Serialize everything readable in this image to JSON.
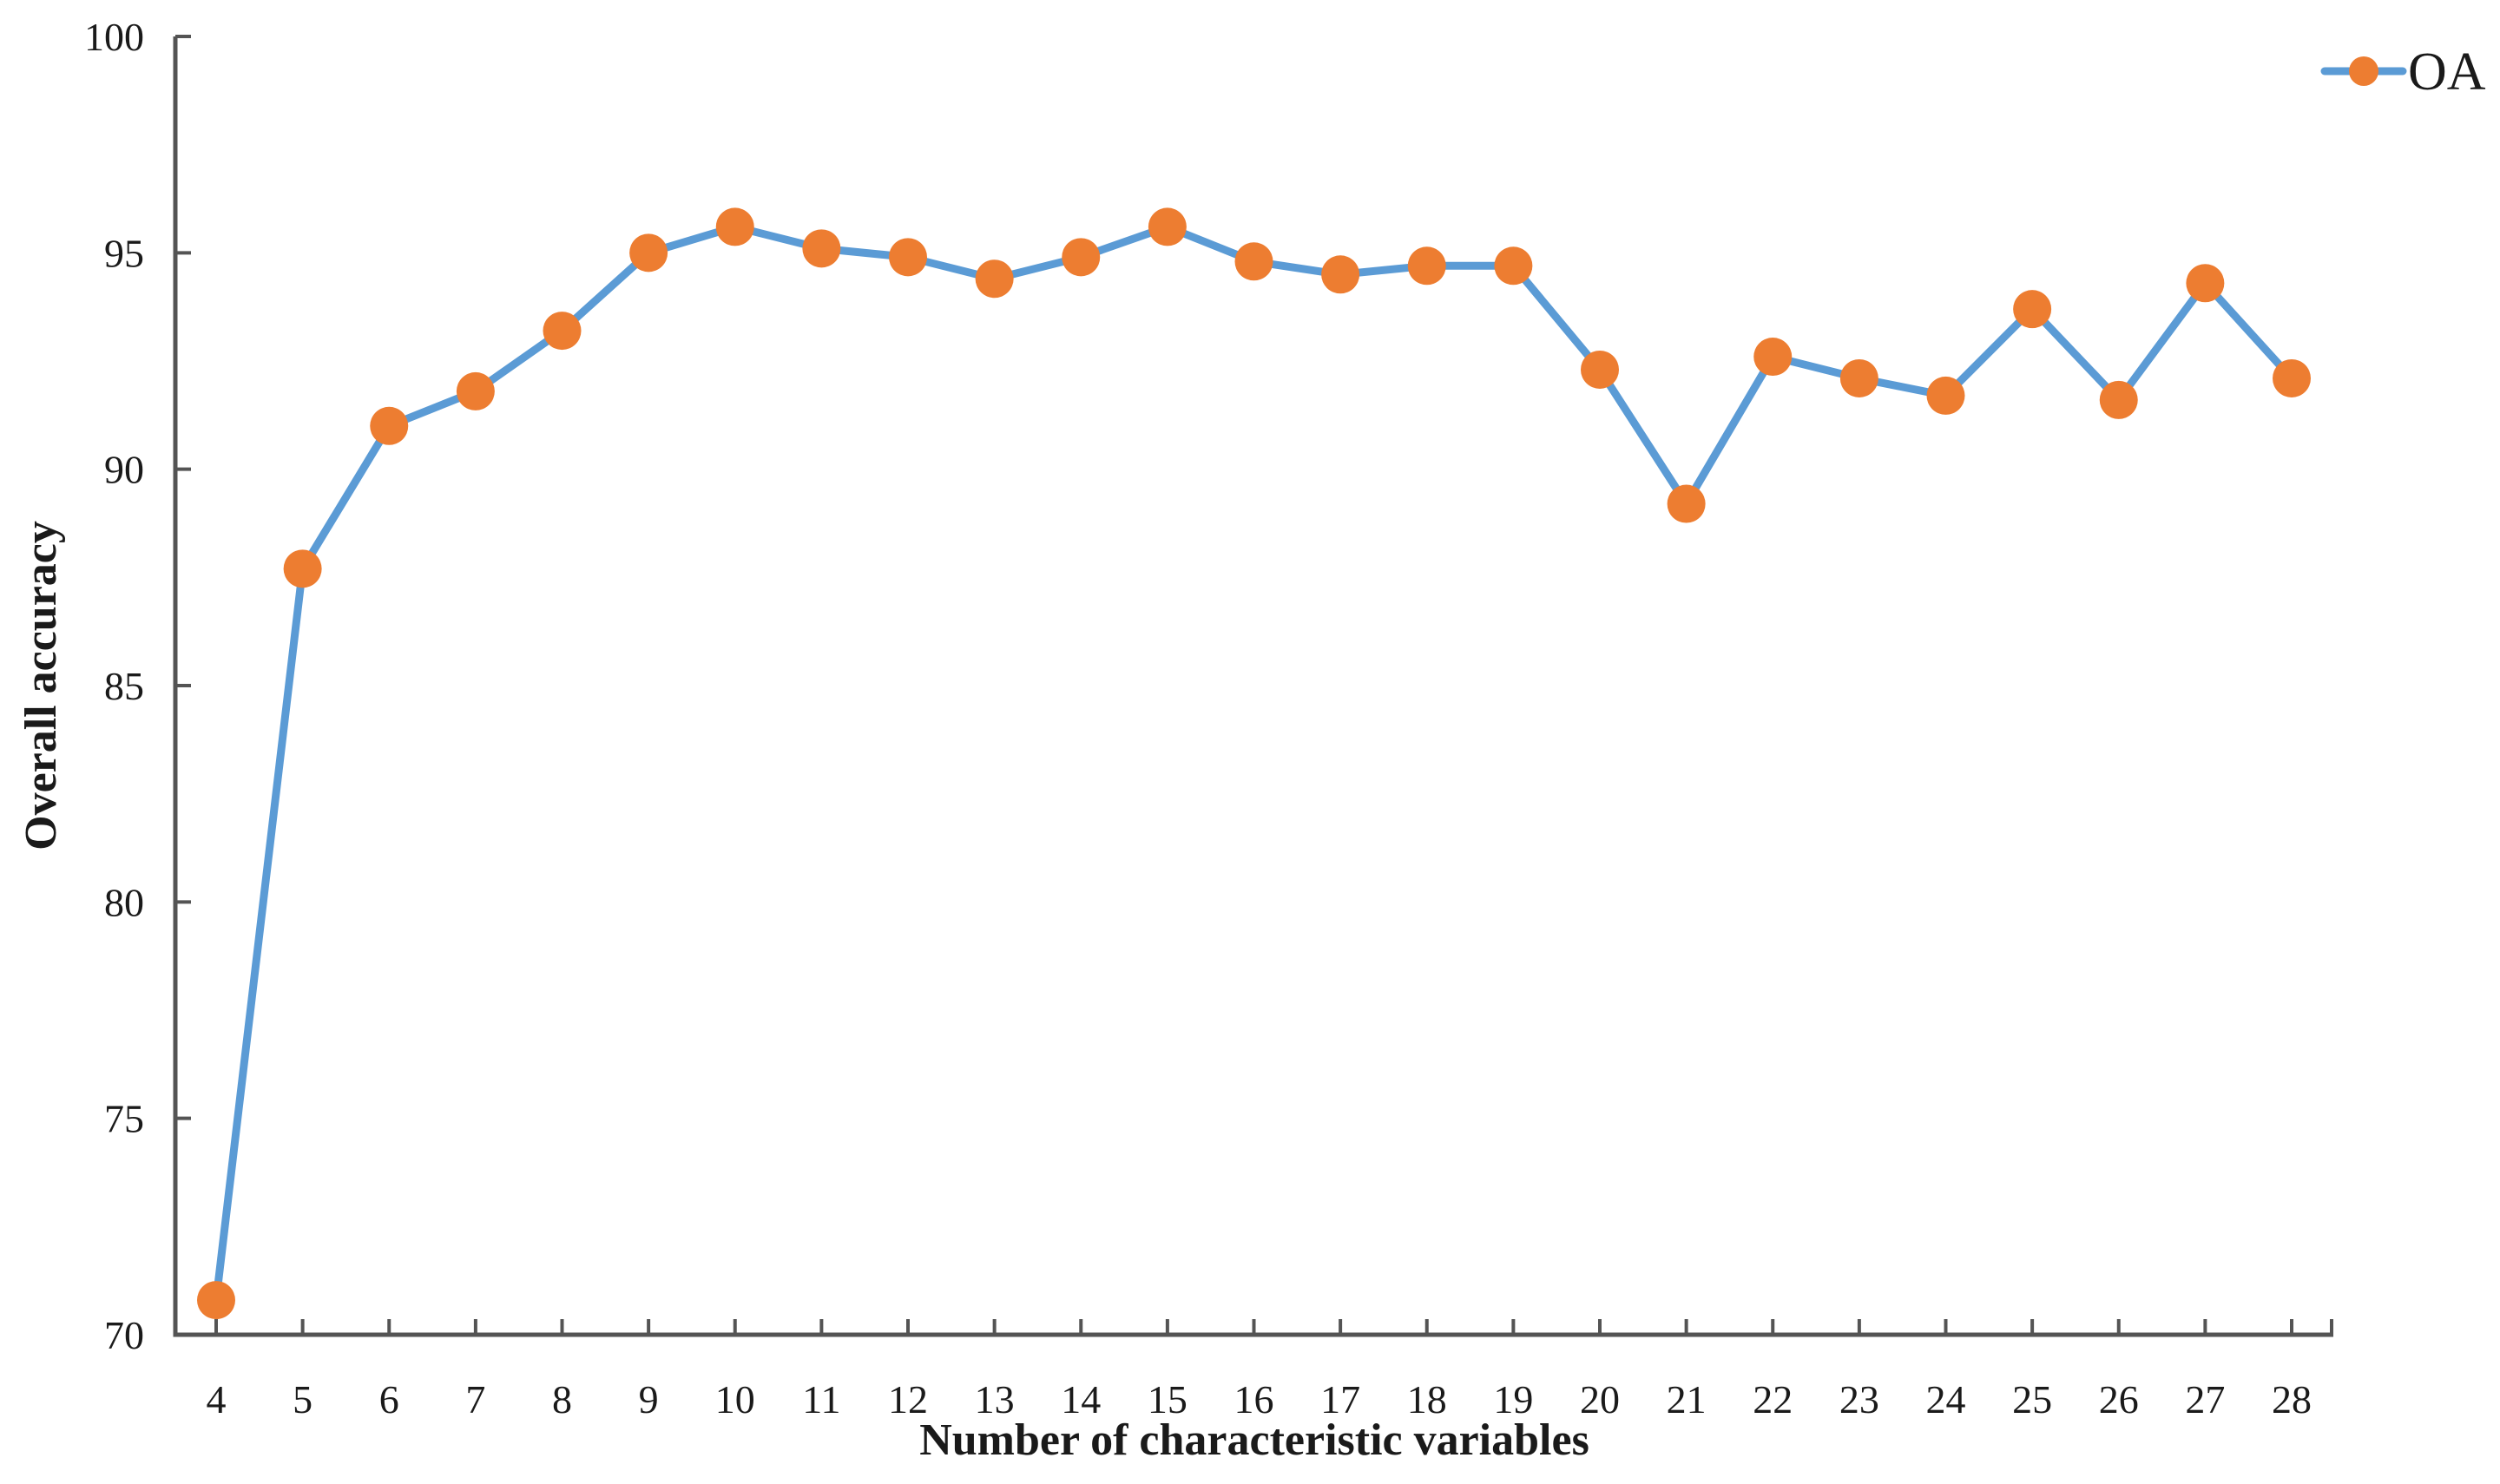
{
  "chart_data": {
    "type": "line",
    "title": "",
    "x": [
      4,
      5,
      6,
      7,
      8,
      9,
      10,
      11,
      12,
      13,
      14,
      15,
      16,
      17,
      18,
      19,
      20,
      21,
      22,
      23,
      24,
      25,
      26,
      27,
      28
    ],
    "series": [
      {
        "name": "OA",
        "values": [
          70.8,
          87.7,
          91.0,
          91.8,
          93.2,
          95.0,
          95.6,
          95.1,
          94.9,
          94.4,
          94.9,
          95.6,
          94.8,
          94.5,
          94.7,
          94.7,
          92.3,
          89.2,
          92.6,
          92.1,
          91.7,
          93.7,
          91.6,
          94.3,
          92.1
        ]
      }
    ],
    "xlabel": "Number of characteristic variables",
    "ylabel": "Overall accuracy",
    "ylim": [
      70,
      100
    ],
    "yticks": [
      70,
      75,
      80,
      85,
      90,
      95,
      100
    ],
    "grid": false,
    "legend_position": "top-right",
    "colors": {
      "line": "#5B9BD5",
      "marker": "#ED7D31",
      "axis": "#545454",
      "text": "#1a1a1a"
    }
  }
}
